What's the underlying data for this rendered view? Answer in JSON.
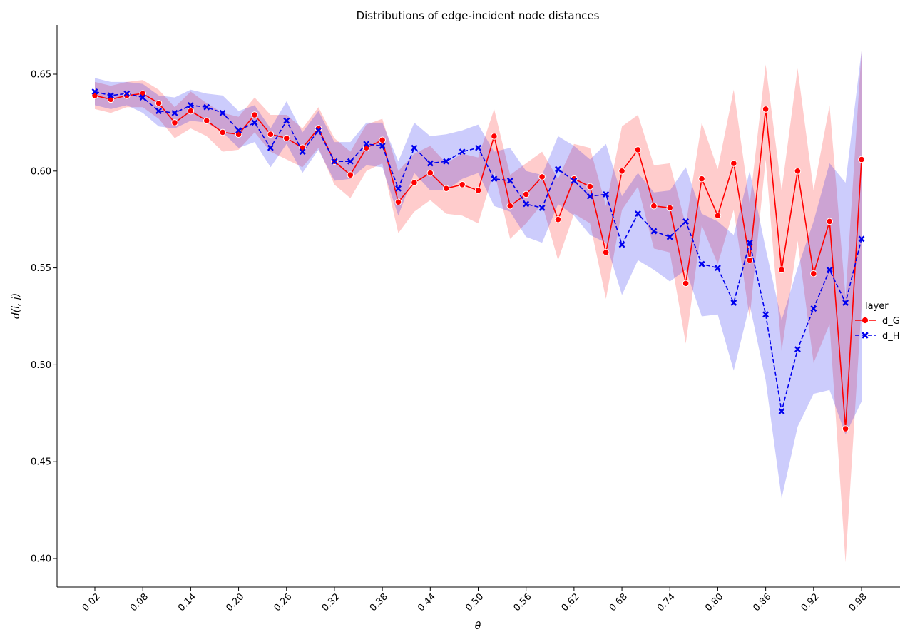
{
  "chart_data": {
    "type": "line",
    "title": "Distributions of edge-incident node distances",
    "xlabel": "θ",
    "ylabel": "d(i, j)",
    "xlim": [
      -0.0,
      1.0
    ],
    "ylim": [
      0.385,
      0.675
    ],
    "xticks": [
      "0.02",
      "0.08",
      "0.14",
      "0.20",
      "0.26",
      "0.32",
      "0.38",
      "0.44",
      "0.50",
      "0.56",
      "0.62",
      "0.68",
      "0.74",
      "0.80",
      "0.86",
      "0.92",
      "0.98"
    ],
    "yticks": [
      "0.40",
      "0.45",
      "0.50",
      "0.55",
      "0.60",
      "0.65"
    ],
    "legend": {
      "title": "layer",
      "position": "right"
    },
    "x": [
      0.02,
      0.04,
      0.06,
      0.08,
      0.1,
      0.12,
      0.14,
      0.16,
      0.18,
      0.2,
      0.22,
      0.24,
      0.26,
      0.28,
      0.3,
      0.32,
      0.34,
      0.36,
      0.38,
      0.4,
      0.42,
      0.44,
      0.46,
      0.48,
      0.5,
      0.52,
      0.54,
      0.56,
      0.58,
      0.6,
      0.62,
      0.64,
      0.66,
      0.68,
      0.7,
      0.72,
      0.74,
      0.76,
      0.78,
      0.8,
      0.82,
      0.84,
      0.86,
      0.88,
      0.9,
      0.92,
      0.94,
      0.96,
      0.98
    ],
    "series": [
      {
        "name": "d_G",
        "color": "#ff0000",
        "linestyle": "solid",
        "marker": "circle",
        "values": [
          0.639,
          0.637,
          0.639,
          0.64,
          0.635,
          0.625,
          0.631,
          0.626,
          0.62,
          0.619,
          0.629,
          0.619,
          0.617,
          0.612,
          0.622,
          0.605,
          0.598,
          0.612,
          0.616,
          0.584,
          0.594,
          0.599,
          0.591,
          0.593,
          0.59,
          0.618,
          0.582,
          0.588,
          0.597,
          0.575,
          0.596,
          0.592,
          0.558,
          0.6,
          0.611,
          0.582,
          0.581,
          0.542,
          0.596,
          0.577,
          0.604,
          0.554,
          0.632,
          0.549,
          0.6,
          0.547,
          0.574,
          0.467,
          0.606
        ],
        "lower": [
          0.632,
          0.63,
          0.633,
          0.633,
          0.627,
          0.617,
          0.622,
          0.618,
          0.61,
          0.611,
          0.62,
          0.61,
          0.606,
          0.602,
          0.612,
          0.593,
          0.586,
          0.6,
          0.604,
          0.568,
          0.579,
          0.585,
          0.578,
          0.577,
          0.573,
          0.6,
          0.565,
          0.573,
          0.583,
          0.554,
          0.578,
          0.573,
          0.534,
          0.58,
          0.592,
          0.56,
          0.558,
          0.511,
          0.572,
          0.552,
          0.58,
          0.524,
          0.606,
          0.507,
          0.564,
          0.501,
          0.521,
          0.398,
          0.53
        ],
        "upper": [
          0.646,
          0.644,
          0.646,
          0.647,
          0.642,
          0.633,
          0.641,
          0.635,
          0.63,
          0.628,
          0.638,
          0.629,
          0.629,
          0.622,
          0.633,
          0.617,
          0.61,
          0.624,
          0.627,
          0.6,
          0.609,
          0.613,
          0.604,
          0.609,
          0.607,
          0.632,
          0.598,
          0.604,
          0.61,
          0.596,
          0.614,
          0.612,
          0.582,
          0.623,
          0.629,
          0.603,
          0.604,
          0.572,
          0.625,
          0.601,
          0.642,
          0.583,
          0.655,
          0.59,
          0.653,
          0.59,
          0.634,
          0.535,
          0.662
        ]
      },
      {
        "name": "d_H",
        "color": "#0000ee",
        "linestyle": "dashed",
        "marker": "x",
        "values": [
          0.641,
          0.639,
          0.64,
          0.638,
          0.631,
          0.63,
          0.634,
          0.633,
          0.63,
          0.621,
          0.625,
          0.612,
          0.626,
          0.61,
          0.621,
          0.605,
          0.605,
          0.614,
          0.613,
          0.591,
          0.612,
          0.604,
          0.605,
          0.61,
          0.612,
          0.596,
          0.595,
          0.583,
          0.581,
          0.601,
          0.595,
          0.587,
          0.588,
          0.562,
          0.578,
          0.569,
          0.566,
          0.574,
          0.552,
          0.55,
          0.532,
          0.563,
          0.526,
          0.476,
          0.508,
          0.529,
          0.549,
          0.532,
          0.565
        ],
        "lower": [
          0.634,
          0.632,
          0.634,
          0.63,
          0.623,
          0.622,
          0.626,
          0.625,
          0.62,
          0.612,
          0.615,
          0.602,
          0.614,
          0.599,
          0.611,
          0.595,
          0.596,
          0.603,
          0.602,
          0.577,
          0.599,
          0.59,
          0.59,
          0.596,
          0.599,
          0.582,
          0.579,
          0.566,
          0.563,
          0.583,
          0.577,
          0.567,
          0.563,
          0.536,
          0.554,
          0.549,
          0.543,
          0.549,
          0.525,
          0.526,
          0.497,
          0.531,
          0.492,
          0.431,
          0.468,
          0.485,
          0.487,
          0.464,
          0.481
        ],
        "upper": [
          0.648,
          0.646,
          0.646,
          0.645,
          0.639,
          0.638,
          0.642,
          0.64,
          0.639,
          0.631,
          0.634,
          0.622,
          0.636,
          0.62,
          0.631,
          0.615,
          0.615,
          0.625,
          0.625,
          0.605,
          0.625,
          0.618,
          0.619,
          0.621,
          0.624,
          0.61,
          0.612,
          0.6,
          0.598,
          0.618,
          0.613,
          0.606,
          0.614,
          0.587,
          0.599,
          0.589,
          0.59,
          0.602,
          0.578,
          0.574,
          0.567,
          0.6,
          0.56,
          0.523,
          0.55,
          0.574,
          0.604,
          0.594,
          0.662
        ]
      }
    ]
  }
}
